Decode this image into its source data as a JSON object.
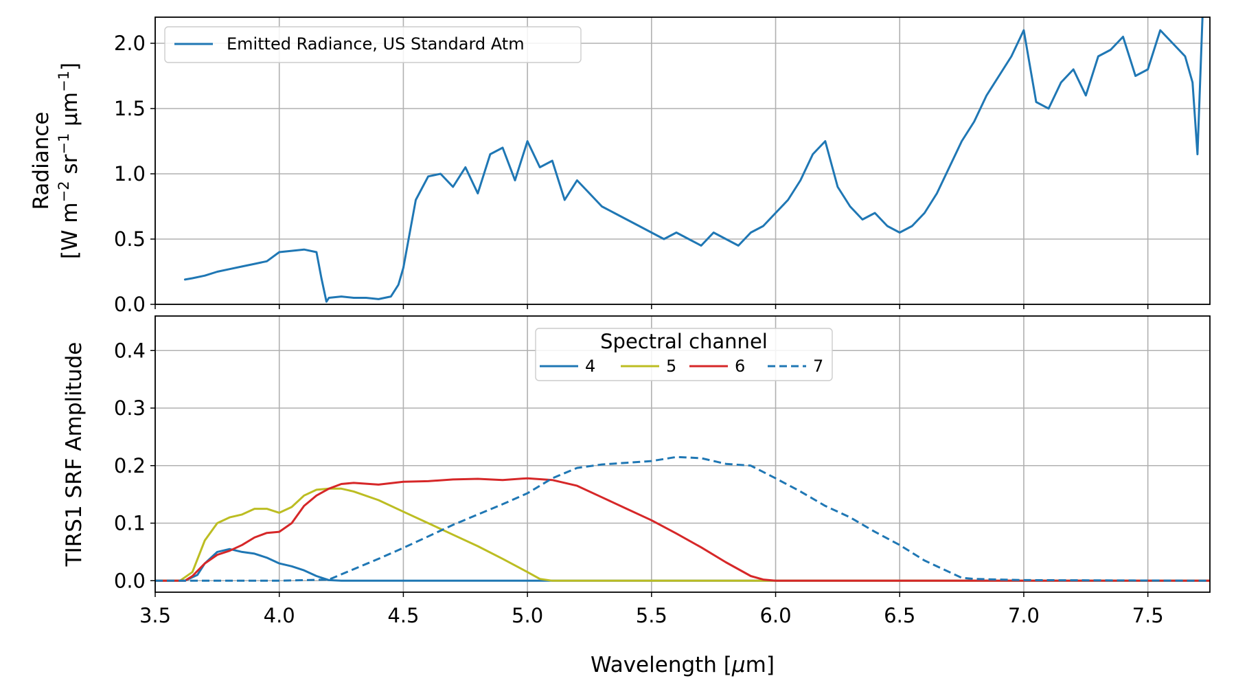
{
  "chart_data": [
    {
      "type": "line",
      "panel": "top",
      "ylabel_line1": "Radiance",
      "ylabel_line2_prefix": "[W m",
      "ylabel_line2_parts": [
        "−2",
        " sr",
        "−1",
        " μm",
        "−1",
        "]"
      ],
      "xlim": [
        3.5,
        7.75
      ],
      "ylim": [
        0.0,
        2.2
      ],
      "yticks": [
        "0.0",
        "0.5",
        "1.0",
        "1.5",
        "2.0"
      ],
      "grid": true,
      "legend_position": "top-left",
      "series": [
        {
          "name": "Emitted Radiance, US Standard Atm",
          "color": "#1f77b4",
          "style": "solid",
          "x": [
            3.62,
            3.65,
            3.7,
            3.75,
            3.8,
            3.85,
            3.9,
            3.95,
            4.0,
            4.05,
            4.1,
            4.15,
            4.17,
            4.19,
            4.2,
            4.25,
            4.3,
            4.35,
            4.4,
            4.45,
            4.48,
            4.5,
            4.55,
            4.6,
            4.65,
            4.7,
            4.75,
            4.8,
            4.85,
            4.9,
            4.95,
            5.0,
            5.05,
            5.1,
            5.15,
            5.2,
            5.25,
            5.3,
            5.35,
            5.4,
            5.45,
            5.5,
            5.55,
            5.6,
            5.65,
            5.7,
            5.75,
            5.8,
            5.85,
            5.9,
            5.95,
            6.0,
            6.05,
            6.1,
            6.15,
            6.2,
            6.25,
            6.3,
            6.35,
            6.4,
            6.45,
            6.5,
            6.55,
            6.6,
            6.65,
            6.7,
            6.75,
            6.8,
            6.85,
            6.9,
            6.95,
            7.0,
            7.05,
            7.1,
            7.15,
            7.2,
            7.25,
            7.3,
            7.35,
            7.4,
            7.45,
            7.5,
            7.55,
            7.6,
            7.65,
            7.68,
            7.7,
            7.72
          ],
          "y": [
            0.19,
            0.2,
            0.22,
            0.25,
            0.27,
            0.29,
            0.31,
            0.33,
            0.4,
            0.41,
            0.42,
            0.4,
            0.2,
            0.02,
            0.05,
            0.06,
            0.05,
            0.05,
            0.04,
            0.06,
            0.15,
            0.28,
            0.8,
            0.98,
            1.0,
            0.9,
            1.05,
            0.85,
            1.15,
            1.2,
            0.95,
            1.25,
            1.05,
            1.1,
            0.8,
            0.95,
            0.85,
            0.75,
            0.7,
            0.65,
            0.6,
            0.55,
            0.5,
            0.55,
            0.5,
            0.45,
            0.55,
            0.5,
            0.45,
            0.55,
            0.6,
            0.7,
            0.8,
            0.95,
            1.15,
            1.25,
            0.9,
            0.75,
            0.65,
            0.7,
            0.6,
            0.55,
            0.6,
            0.7,
            0.85,
            1.05,
            1.25,
            1.4,
            1.6,
            1.75,
            1.9,
            2.1,
            1.55,
            1.5,
            1.7,
            1.8,
            1.6,
            1.9,
            1.95,
            2.05,
            1.75,
            1.8,
            2.1,
            2.0,
            1.9,
            1.7,
            1.15,
            2.2
          ]
        }
      ]
    },
    {
      "type": "line",
      "panel": "bottom",
      "xlabel_prefix": "Wavelength [",
      "xlabel_mu": "μ",
      "xlabel_suffix": "m]",
      "ylabel": "TIRS1 SRF Amplitude",
      "xlim": [
        3.5,
        7.75
      ],
      "ylim": [
        -0.02,
        0.46
      ],
      "xticks": [
        "3.5",
        "4.0",
        "4.5",
        "5.0",
        "5.5",
        "6.0",
        "6.5",
        "7.0",
        "7.5"
      ],
      "yticks": [
        "0.0",
        "0.1",
        "0.2",
        "0.3",
        "0.4"
      ],
      "grid": true,
      "legend_title": "Spectral channel",
      "legend_position": "top-center",
      "series": [
        {
          "name": "4",
          "color": "#1f77b4",
          "style": "solid",
          "x": [
            3.5,
            3.62,
            3.67,
            3.7,
            3.75,
            3.8,
            3.85,
            3.9,
            3.95,
            4.0,
            4.05,
            4.1,
            4.15,
            4.2,
            4.25,
            4.5,
            5.0,
            6.0,
            7.0,
            7.75
          ],
          "y": [
            0.0,
            0.0,
            0.01,
            0.03,
            0.05,
            0.055,
            0.05,
            0.047,
            0.04,
            0.03,
            0.025,
            0.018,
            0.008,
            0.001,
            0.0,
            0.0,
            0.0,
            0.0,
            0.0,
            0.0
          ]
        },
        {
          "name": "5",
          "color": "#bcbd22",
          "style": "solid",
          "x": [
            3.5,
            3.6,
            3.65,
            3.7,
            3.75,
            3.8,
            3.85,
            3.9,
            3.95,
            4.0,
            4.05,
            4.1,
            4.15,
            4.2,
            4.25,
            4.3,
            4.4,
            4.5,
            4.6,
            4.7,
            4.8,
            4.9,
            5.0,
            5.05,
            5.1,
            5.5,
            6.0,
            7.0,
            7.75
          ],
          "y": [
            0.0,
            0.0,
            0.015,
            0.07,
            0.1,
            0.11,
            0.115,
            0.125,
            0.125,
            0.118,
            0.128,
            0.148,
            0.158,
            0.16,
            0.16,
            0.155,
            0.14,
            0.12,
            0.1,
            0.08,
            0.06,
            0.038,
            0.015,
            0.003,
            0.0,
            0.0,
            0.0,
            0.0,
            0.0
          ]
        },
        {
          "name": "6",
          "color": "#d62728",
          "style": "solid",
          "x": [
            3.5,
            3.62,
            3.65,
            3.7,
            3.75,
            3.8,
            3.85,
            3.9,
            3.95,
            4.0,
            4.05,
            4.1,
            4.15,
            4.2,
            4.25,
            4.3,
            4.4,
            4.5,
            4.6,
            4.7,
            4.8,
            4.9,
            5.0,
            5.1,
            5.2,
            5.3,
            5.4,
            5.5,
            5.6,
            5.7,
            5.8,
            5.9,
            5.95,
            6.0,
            7.0,
            7.75
          ],
          "y": [
            0.0,
            0.0,
            0.008,
            0.03,
            0.045,
            0.052,
            0.062,
            0.075,
            0.083,
            0.085,
            0.1,
            0.13,
            0.148,
            0.16,
            0.168,
            0.17,
            0.167,
            0.172,
            0.173,
            0.176,
            0.177,
            0.175,
            0.178,
            0.175,
            0.165,
            0.145,
            0.125,
            0.105,
            0.082,
            0.058,
            0.032,
            0.008,
            0.002,
            0.0,
            0.0,
            0.0
          ]
        },
        {
          "name": "7",
          "color": "#1f77b4",
          "style": "dashed",
          "x": [
            3.5,
            4.0,
            4.2,
            4.3,
            4.4,
            4.5,
            4.6,
            4.7,
            4.8,
            4.9,
            5.0,
            5.1,
            5.2,
            5.3,
            5.4,
            5.5,
            5.6,
            5.7,
            5.8,
            5.9,
            6.0,
            6.1,
            6.2,
            6.3,
            6.4,
            6.5,
            6.6,
            6.7,
            6.75,
            6.8,
            7.0,
            7.75
          ],
          "y": [
            0.0,
            0.0,
            0.002,
            0.02,
            0.038,
            0.057,
            0.077,
            0.097,
            0.115,
            0.133,
            0.152,
            0.178,
            0.196,
            0.202,
            0.205,
            0.208,
            0.215,
            0.213,
            0.203,
            0.2,
            0.178,
            0.155,
            0.13,
            0.11,
            0.085,
            0.062,
            0.035,
            0.015,
            0.005,
            0.003,
            0.001,
            0.0
          ]
        }
      ]
    }
  ]
}
